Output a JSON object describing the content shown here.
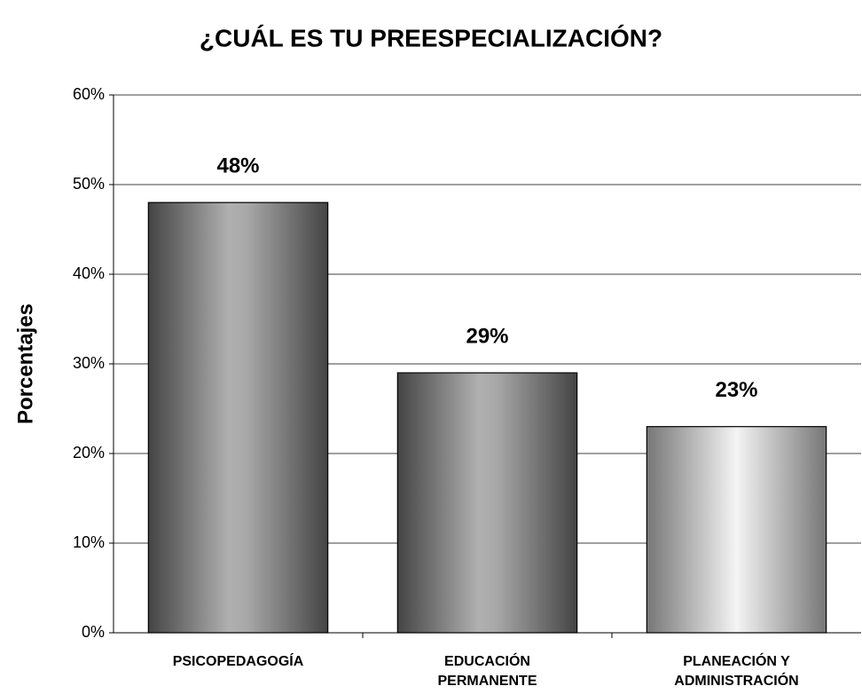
{
  "chart_data": {
    "type": "bar",
    "title": "¿CUÁL ES TU PREESPECIALIZACIÓN?",
    "y_label": "Porcentajes",
    "categories": [
      "PSICOPEDAGOGÍA",
      "EDUCACIÓN PERMANENTE",
      "PLANEACIÓN Y ADMINISTRACIÓN"
    ],
    "values": [
      48,
      29,
      23
    ],
    "value_labels": [
      "48%",
      "29%",
      "23%"
    ],
    "ylim": [
      0,
      60
    ],
    "yticks": [
      {
        "value": 0,
        "label": "0%"
      },
      {
        "value": 10,
        "label": "10%"
      },
      {
        "value": 20,
        "label": "20%"
      },
      {
        "value": 30,
        "label": "30%"
      },
      {
        "value": 40,
        "label": "40%"
      },
      {
        "value": 50,
        "label": "50%"
      },
      {
        "value": 60,
        "label": "60%"
      }
    ],
    "grid": true
  }
}
